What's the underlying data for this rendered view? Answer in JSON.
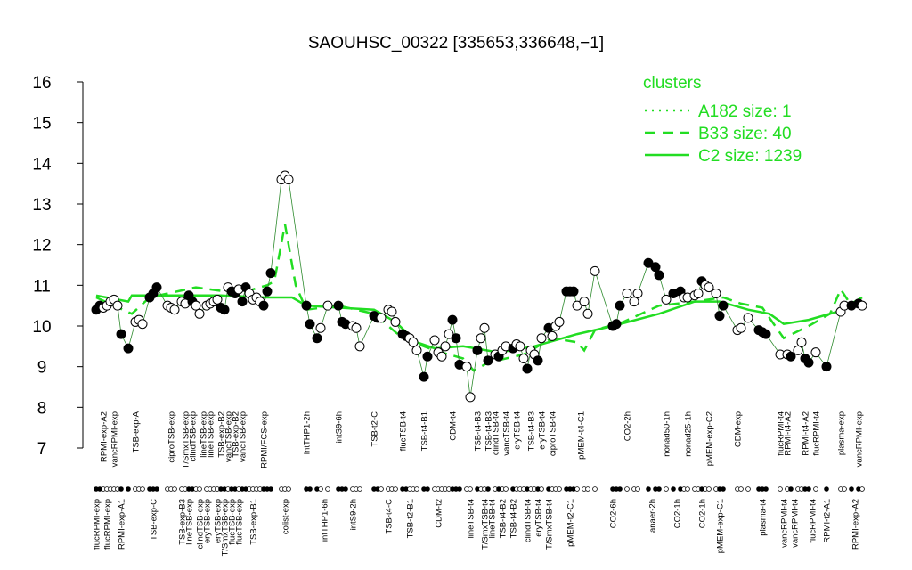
{
  "chart_data": {
    "type": "profile",
    "title": "SAOUHSC_00322 [335653,336648,−1]",
    "xlim": [
      -1,
      217
    ],
    "ylim": [
      7,
      16
    ],
    "yticks": [
      7,
      8,
      9,
      10,
      11,
      12,
      13,
      14,
      15,
      16
    ],
    "point_color": "#000000",
    "samples": {
      "x": [
        0,
        1,
        2,
        3,
        4,
        5,
        6,
        7,
        9,
        11,
        12,
        13,
        15,
        16,
        17,
        20,
        21,
        22,
        24,
        25,
        26,
        27,
        28,
        29,
        31,
        32,
        33,
        34,
        35,
        36,
        37,
        38,
        39,
        40,
        41,
        42,
        43,
        44,
        45,
        46,
        47,
        48,
        49,
        52,
        53,
        54,
        59,
        60,
        62,
        63,
        65,
        68,
        69,
        70,
        72,
        73,
        74,
        78,
        79,
        80,
        82,
        83,
        84,
        86,
        87,
        88,
        89,
        90,
        92,
        93,
        95,
        96,
        97,
        98,
        99,
        100,
        101,
        102,
        104,
        105,
        107,
        108,
        109,
        110,
        112,
        113,
        114,
        115,
        117,
        118,
        119,
        120,
        121,
        122,
        123,
        124,
        125,
        127,
        128,
        129,
        130,
        132,
        133,
        134,
        135,
        137,
        138,
        140,
        145,
        146,
        147,
        149,
        151,
        152,
        155,
        157,
        158,
        160,
        162,
        164,
        165,
        166,
        168,
        169,
        170,
        171,
        172,
        174,
        175,
        176,
        180,
        181,
        183,
        186,
        187,
        188,
        192,
        194,
        195,
        197,
        198,
        199,
        200,
        202,
        205,
        209,
        210,
        212,
        214,
        215
      ],
      "values": [
        10.4,
        10.5,
        10.45,
        10.5,
        10.6,
        10.65,
        10.5,
        9.8,
        9.45,
        10.1,
        10.15,
        10.05,
        10.7,
        10.8,
        10.95,
        10.5,
        10.45,
        10.4,
        10.6,
        10.55,
        10.75,
        10.6,
        10.5,
        10.3,
        10.5,
        10.55,
        10.6,
        10.65,
        10.45,
        10.4,
        10.95,
        10.85,
        10.8,
        10.9,
        10.6,
        10.95,
        10.8,
        10.65,
        10.7,
        10.6,
        10.5,
        10.85,
        11.3,
        13.6,
        13.7,
        13.6,
        10.5,
        10.05,
        9.7,
        9.95,
        10.5,
        10.5,
        10.1,
        10.05,
        10.0,
        9.95,
        9.5,
        10.25,
        10.2,
        10.2,
        10.4,
        10.35,
        10.1,
        9.8,
        9.75,
        9.7,
        9.6,
        9.4,
        8.75,
        9.25,
        9.65,
        9.35,
        9.25,
        9.5,
        9.8,
        10.15,
        9.7,
        9.05,
        9.0,
        8.25,
        9.4,
        9.7,
        9.95,
        9.15,
        9.3,
        9.25,
        9.4,
        9.5,
        9.45,
        9.55,
        9.5,
        9.2,
        8.95,
        9.4,
        9.3,
        9.15,
        9.7,
        9.95,
        9.75,
        10.0,
        10.1,
        10.85,
        10.85,
        10.85,
        10.5,
        10.6,
        10.3,
        11.35,
        10.0,
        10.05,
        10.5,
        10.8,
        10.6,
        10.8,
        11.55,
        11.45,
        11.25,
        10.65,
        10.8,
        10.85,
        10.7,
        10.7,
        10.75,
        10.8,
        11.1,
        11.0,
        10.95,
        10.8,
        10.25,
        10.5,
        9.9,
        9.95,
        10.2,
        9.9,
        9.85,
        9.8,
        9.3,
        9.3,
        9.25,
        9.4,
        9.6,
        9.2,
        9.1,
        9.35,
        9.0,
        10.35,
        10.5,
        10.5,
        10.55,
        10.5
      ],
      "filled": [
        true,
        true,
        false,
        false,
        false,
        false,
        false,
        true,
        true,
        false,
        false,
        false,
        true,
        true,
        true,
        false,
        false,
        false,
        false,
        false,
        true,
        true,
        false,
        false,
        false,
        false,
        false,
        false,
        true,
        true,
        false,
        true,
        true,
        false,
        true,
        true,
        false,
        false,
        false,
        false,
        true,
        true,
        true,
        false,
        false,
        false,
        true,
        true,
        true,
        false,
        false,
        true,
        true,
        true,
        false,
        false,
        false,
        true,
        true,
        false,
        false,
        false,
        false,
        true,
        true,
        false,
        false,
        false,
        true,
        true,
        false,
        false,
        false,
        false,
        false,
        true,
        true,
        true,
        false,
        false,
        true,
        false,
        false,
        true,
        false,
        true,
        false,
        false,
        true,
        false,
        false,
        false,
        true,
        false,
        false,
        true,
        false,
        true,
        false,
        false,
        false,
        true,
        true,
        true,
        false,
        false,
        false,
        false,
        true,
        true,
        true,
        false,
        false,
        false,
        true,
        true,
        true,
        false,
        true,
        true,
        false,
        false,
        false,
        false,
        true,
        false,
        false,
        false,
        true,
        true,
        false,
        false,
        false,
        true,
        true,
        true,
        false,
        false,
        true,
        false,
        false,
        true,
        true,
        false,
        true,
        false,
        false,
        true,
        true,
        false
      ]
    },
    "x_labels": {
      "x": [
        0,
        2,
        3,
        5,
        7,
        11,
        16,
        21,
        24,
        25,
        26,
        27,
        29,
        30,
        31,
        32,
        34,
        35,
        36,
        37,
        38,
        39,
        40,
        41,
        44,
        47,
        53,
        59,
        64,
        68,
        72,
        78,
        82,
        86,
        88,
        92,
        96,
        100,
        105,
        107,
        109,
        110,
        111,
        112,
        114,
        115,
        117,
        118,
        121,
        122,
        124,
        125,
        127,
        128,
        133,
        136,
        145,
        149,
        156,
        160,
        163,
        166,
        170,
        172,
        175,
        180,
        187,
        192,
        193,
        194,
        196,
        199,
        201,
        202,
        205,
        209,
        213,
        214
      ],
      "labels": [
        "flucRPMI-exp",
        "RPMI-exp-A2",
        "flucRPMI-exp",
        "vancRPMI-exp",
        "RPMI-exp-A1",
        "TSB-exp-A",
        "TSB-exp-C",
        "ciproTSB-exp",
        "TSB-exp-B3",
        "T/SmxTSB-exp",
        "lineTSB-exp",
        "clindTSB-exp",
        "clindTSB-exp",
        "lineTSB-exp",
        "eryTSB-exp",
        "lineTSB-exp",
        "eryTSB-exp",
        "TSB-exp-B2",
        "T/SmxTSB-exp",
        "vancTSB-exp",
        "flucTSB-exp",
        "TSB-exp-B2",
        "flucTSB-exp",
        "vancTSB-exp",
        "TSB-exp-B1",
        "RPMI/FCS-exp",
        "colist-exp",
        "intTHP1-2h",
        "intTHP1-6h",
        "intS9-6h",
        "intS9-2h",
        "TSB-t2-C",
        "TSB-t4-C",
        "flucTSB-t4",
        "TSB-t2-B1",
        "TSB-t4-B1",
        "CDM-t2",
        "CDM-t4",
        "lineTSB-t4",
        "TSB-t4-B3",
        "T/SmxTSB-t4",
        "TSB-t4-B3",
        "lineTSB-t4",
        "clindTSB-t4",
        "TSB-t4-B2",
        "vancTSB-t4",
        "TSB-t4-B2",
        "eryTSB-t4",
        "clindTSB-t4",
        "TSB-t4-B3",
        "eryTSB-t4",
        "eryTSB-t4",
        "T/SmxTSB-t4",
        "ciproTSB-t4",
        "pMEM-t2-C1",
        "pMEM-t4-C1",
        "CO2-6h",
        "CO2-2h",
        "anaer-2h",
        "nonad50-1h",
        "CO2-1h",
        "nonad25-1h",
        "CO2-1h",
        "pMEM-exp-C2",
        "pMEM-exp-C1",
        "CDM-exp",
        "plasma-t4",
        "flucRPMI-t4",
        "vancRPMI-t4",
        "RPMI-t4-A2",
        "vancRPMI-t4",
        "RPMI-t4-A2",
        "flucRPMI-t4",
        "flucRPMI-t4",
        "RPMI-t2-A1",
        "plasma-exp",
        "RPMI-exp-A2",
        "vancRPMI-exp"
      ]
    },
    "legend": {
      "title": "clusters",
      "position": "top-right",
      "color": "#22dd22"
    },
    "series": [
      {
        "name": "A182 size: 1",
        "color": "#22dd22",
        "dash": "dotted"
      },
      {
        "name": "B33 size: 40",
        "color": "#22dd22",
        "dash": "dashed",
        "x": [
          0,
          10,
          15,
          28,
          40,
          48,
          50,
          53,
          56,
          59,
          68,
          78,
          86,
          95,
          103,
          106,
          110,
          120,
          128,
          135,
          137,
          140,
          148,
          158,
          168,
          176,
          181,
          187,
          193,
          200,
          206,
          209,
          212,
          215
        ],
        "values": [
          10.7,
          10.3,
          10.7,
          10.95,
          10.8,
          11.0,
          11.1,
          12.5,
          11.0,
          10.4,
          10.5,
          10.3,
          9.7,
          9.4,
          9.2,
          8.9,
          9.1,
          9.3,
          9.7,
          9.6,
          9.4,
          9.9,
          10.1,
          10.5,
          10.6,
          10.7,
          10.55,
          10.45,
          9.7,
          10.0,
          10.3,
          10.9,
          10.5,
          10.6
        ]
      },
      {
        "name": "C2 size: 1239",
        "color": "#22dd22",
        "dash": "solid",
        "x": [
          0,
          9,
          10,
          23,
          35,
          48,
          55,
          59,
          68,
          78,
          84,
          90,
          95,
          103,
          113,
          123,
          135,
          145,
          158,
          168,
          175,
          183,
          189,
          193,
          200,
          208,
          215
        ],
        "values": [
          10.75,
          10.6,
          10.75,
          10.75,
          10.75,
          10.7,
          10.7,
          10.5,
          10.45,
          10.4,
          10.1,
          9.6,
          9.45,
          9.5,
          9.35,
          9.5,
          9.8,
          10.0,
          10.3,
          10.6,
          10.6,
          10.4,
          10.3,
          10.05,
          10.15,
          10.35,
          10.7
        ]
      }
    ]
  }
}
